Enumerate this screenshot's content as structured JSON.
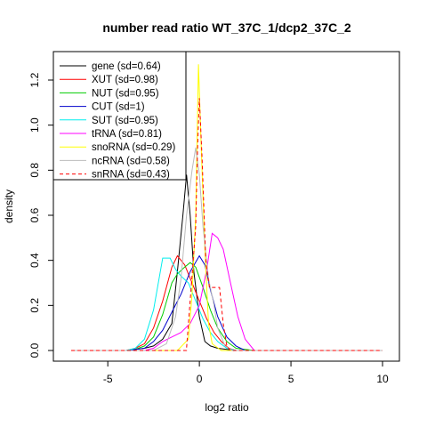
{
  "chart_data": {
    "type": "line",
    "title": "number read ratio WT_37C_1/dcp2_37C_2",
    "xlabel": "log2 ratio",
    "ylabel": "density",
    "xlim": [
      -7.0,
      10.0
    ],
    "ylim": [
      0.0,
      1.32
    ],
    "xticks": [
      -5,
      0,
      5,
      10
    ],
    "yticks": [
      0.0,
      0.2,
      0.4,
      0.6,
      0.8,
      1.0,
      1.2
    ],
    "grid": false,
    "legend_position": "top-left",
    "series": [
      {
        "name": "gene (sd=0.64)",
        "color": "#000000",
        "dash": "solid",
        "x": [
          -7,
          -4,
          -3.5,
          -3,
          -2.5,
          -2,
          -1.5,
          -1.2,
          -0.9,
          -0.7,
          -0.5,
          -0.3,
          0,
          0.3,
          0.6,
          1,
          1.5,
          2,
          3,
          10
        ],
        "y": [
          0,
          0,
          0.005,
          0.01,
          0.02,
          0.05,
          0.12,
          0.35,
          0.6,
          0.78,
          0.6,
          0.35,
          0.15,
          0.04,
          0.02,
          0.01,
          0.005,
          0,
          0,
          0
        ]
      },
      {
        "name": "XUT (sd=0.98)",
        "color": "#ff0000",
        "dash": "solid",
        "x": [
          -7,
          -4,
          -3.5,
          -3,
          -2.5,
          -2,
          -1.5,
          -1.2,
          -0.8,
          -0.4,
          0,
          0.4,
          0.8,
          1.2,
          1.6,
          2,
          3,
          10
        ],
        "y": [
          0,
          0,
          0.01,
          0.03,
          0.1,
          0.22,
          0.37,
          0.42,
          0.38,
          0.3,
          0.22,
          0.14,
          0.08,
          0.04,
          0.01,
          0,
          0,
          0
        ]
      },
      {
        "name": "NUT (sd=0.95)",
        "color": "#00cc00",
        "dash": "solid",
        "x": [
          -7,
          -4,
          -3.5,
          -3,
          -2.5,
          -2,
          -1.5,
          -1.2,
          -0.8,
          -0.5,
          -0.2,
          0.2,
          0.6,
          1,
          1.5,
          2,
          3,
          10
        ],
        "y": [
          0,
          0,
          0.005,
          0.02,
          0.06,
          0.16,
          0.3,
          0.34,
          0.37,
          0.39,
          0.37,
          0.28,
          0.18,
          0.1,
          0.04,
          0.01,
          0,
          0
        ]
      },
      {
        "name": "CUT (sd=1)",
        "color": "#0000cc",
        "dash": "solid",
        "x": [
          -7,
          -4,
          -3.5,
          -3,
          -2.5,
          -2,
          -1.5,
          -1.0,
          -0.5,
          0,
          0.3,
          0.6,
          1.0,
          1.5,
          2,
          2.5,
          10
        ],
        "y": [
          0,
          0,
          0.005,
          0.01,
          0.04,
          0.09,
          0.17,
          0.25,
          0.35,
          0.42,
          0.38,
          0.27,
          0.15,
          0.06,
          0.02,
          0,
          0
        ]
      },
      {
        "name": "SUT (sd=0.95)",
        "color": "#00eeee",
        "dash": "solid",
        "x": [
          -7,
          -4,
          -3.5,
          -3,
          -2.5,
          -2,
          -1.6,
          -1.3,
          -1.0,
          -0.6,
          -0.2,
          0.2,
          0.6,
          1.0,
          1.5,
          2,
          3,
          10
        ],
        "y": [
          0,
          0,
          0.01,
          0.05,
          0.18,
          0.41,
          0.41,
          0.36,
          0.33,
          0.3,
          0.22,
          0.14,
          0.08,
          0.04,
          0.01,
          0,
          0,
          0
        ]
      },
      {
        "name": "tRNA (sd=0.81)",
        "color": "#ff00ff",
        "dash": "solid",
        "x": [
          -7,
          -3,
          -2.5,
          -2,
          -1.5,
          -1,
          -0.5,
          0,
          0.4,
          0.7,
          1.0,
          1.3,
          1.7,
          2.1,
          2.5,
          3,
          10
        ],
        "y": [
          0,
          0,
          0.01,
          0.04,
          0.06,
          0.08,
          0.12,
          0.2,
          0.36,
          0.52,
          0.5,
          0.45,
          0.3,
          0.15,
          0.05,
          0,
          0
        ]
      },
      {
        "name": "snoRNA (sd=0.29)",
        "color": "#ffff00",
        "dash": "solid",
        "x": [
          -7,
          -1.2,
          -0.6,
          -0.4,
          -0.2,
          -0.05,
          0.1,
          0.3,
          0.5,
          0.7,
          1.2,
          10
        ],
        "y": [
          0,
          0,
          0.05,
          0.25,
          0.6,
          1.27,
          0.9,
          0.45,
          0.12,
          0.03,
          0,
          0
        ]
      },
      {
        "name": "ncRNA (sd=0.58)",
        "color": "#bbbbbb",
        "dash": "solid",
        "x": [
          -7,
          -2.5,
          -1.8,
          -1.3,
          -1.0,
          -0.7,
          -0.4,
          -0.2,
          0,
          0.2,
          0.5,
          0.8,
          1.0,
          1.4,
          1.8,
          10
        ],
        "y": [
          0,
          0,
          0.03,
          0.15,
          0.32,
          0.6,
          0.8,
          0.9,
          0.78,
          0.55,
          0.32,
          0.2,
          0.1,
          0.02,
          0,
          0
        ]
      },
      {
        "name": "snRNA (sd=0.43)",
        "color": "#ff0000",
        "dash": "dashed",
        "x": [
          -7,
          -0.7,
          -0.7,
          -0.45,
          -0.2,
          -0.1,
          0.0,
          0.15,
          0.35,
          0.55,
          1.1,
          1.3,
          1.5,
          1.7,
          10
        ],
        "y": [
          0,
          0,
          0.01,
          0.28,
          0.55,
          0.9,
          1.12,
          0.85,
          0.4,
          0.28,
          0.28,
          0.12,
          0.02,
          0,
          0
        ]
      }
    ]
  }
}
